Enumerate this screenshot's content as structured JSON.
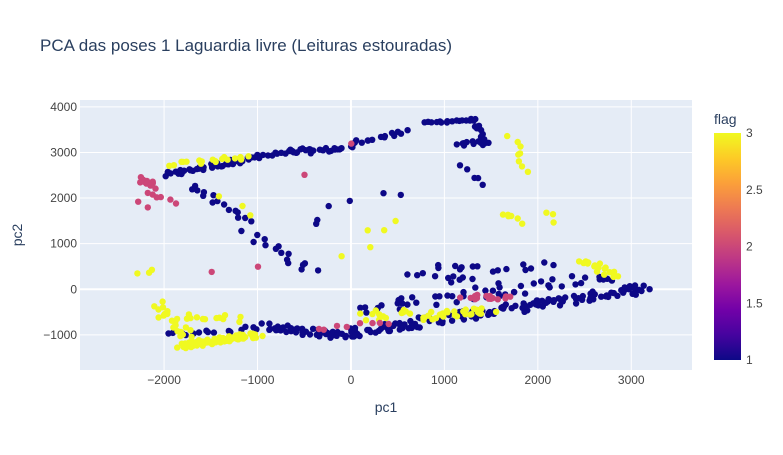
{
  "chart_data": {
    "type": "scatter",
    "title": "PCA das poses 1 Laguardia livre (Leituras estouradas)",
    "xlabel": "pc1",
    "ylabel": "pc2",
    "xlim": [
      -2900,
      3650
    ],
    "ylim": [
      -1770,
      4150
    ],
    "x_ticks": [
      -2000,
      -1000,
      0,
      1000,
      2000,
      3000
    ],
    "x_tick_labels": [
      "−2000",
      "−1000",
      "0",
      "1000",
      "2000",
      "3000"
    ],
    "y_ticks": [
      -1000,
      0,
      1000,
      2000,
      3000,
      4000
    ],
    "y_tick_labels": [
      "−1000",
      "0",
      "1000",
      "2000",
      "3000",
      "4000"
    ],
    "grid": true,
    "colorbar": {
      "title": "flag",
      "min": 1,
      "max": 3,
      "ticks": [
        1,
        1.5,
        2,
        2.5,
        3
      ],
      "tick_labels": [
        "1",
        "1.5",
        "2",
        "2.5",
        "3"
      ]
    },
    "colors": {
      "plot_bg": "#e5ecf6",
      "low": "#0d0887",
      "mid": "#cc4778",
      "high": "#f0f921",
      "text": "#444444",
      "title": "#2a3f5f"
    },
    "series": [
      {
        "flag": 1,
        "segments": [
          {
            "from": [
              -2000,
              2500
            ],
            "to": [
              -1000,
              2900
            ],
            "n": 40,
            "jitter": 55
          },
          {
            "from": [
              -1000,
              2900
            ],
            "to": [
              -500,
              3050
            ],
            "n": 15,
            "jitter": 50
          },
          {
            "from": [
              -600,
              3000
            ],
            "to": [
              0,
              3100
            ],
            "n": 20,
            "jitter": 50
          },
          {
            "from": [
              0,
              3200
            ],
            "to": [
              600,
              3450
            ],
            "n": 15,
            "jitter": 40
          },
          {
            "from": [
              800,
              3650
            ],
            "to": [
              1300,
              3720
            ],
            "n": 15,
            "jitter": 25
          },
          {
            "from": [
              1300,
              3750
            ],
            "to": [
              1450,
              3150
            ],
            "n": 15,
            "jitter": 40
          },
          {
            "from": [
              1150,
              3150
            ],
            "to": [
              1400,
              3250
            ],
            "n": 10,
            "jitter": 40
          },
          {
            "from": [
              -1700,
              2300
            ],
            "to": [
              -1100,
              1500
            ],
            "n": 15,
            "jitter": 60
          },
          {
            "from": [
              -1100,
              1200
            ],
            "to": [
              -400,
              400
            ],
            "n": 15,
            "jitter": 80
          },
          {
            "from": [
              -2000,
              -1000
            ],
            "to": [
              -1000,
              -850
            ],
            "n": 15,
            "jitter": 50
          },
          {
            "from": [
              -900,
              -800
            ],
            "to": [
              0,
              -1050
            ],
            "n": 45,
            "jitter": 80
          },
          {
            "from": [
              0,
              -950
            ],
            "to": [
              3200,
              50
            ],
            "n": 140,
            "jitter": 100
          },
          {
            "from": [
              100,
              -450
            ],
            "to": [
              2800,
              300
            ],
            "n": 50,
            "jitter": 120
          },
          {
            "from": [
              900,
              450
            ],
            "to": [
              2100,
              500
            ],
            "n": 15,
            "jitter": 100
          },
          {
            "from": [
              1200,
              2700
            ],
            "to": [
              1400,
              2300
            ],
            "n": 5,
            "jitter": 60
          },
          {
            "from": [
              -500,
              1500
            ],
            "to": [
              500,
              2100
            ],
            "n": 6,
            "jitter": 150
          },
          {
            "from": [
              700,
              400
            ],
            "to": [
              1500,
              100
            ],
            "n": 12,
            "jitter": 100
          }
        ]
      },
      {
        "flag": 3,
        "segments": [
          {
            "from": [
              -1850,
              -1250
            ],
            "to": [
              -1000,
              -1000
            ],
            "n": 90,
            "jitter": 60
          },
          {
            "from": [
              -2100,
              -350
            ],
            "to": [
              -1700,
              -1150
            ],
            "n": 25,
            "jitter": 90
          },
          {
            "from": [
              -1800,
              -600
            ],
            "to": [
              -1200,
              -650
            ],
            "n": 12,
            "jitter": 80
          },
          {
            "from": [
              -1900,
              2750
            ],
            "to": [
              -1100,
              2900
            ],
            "n": 18,
            "jitter": 50
          },
          {
            "from": [
              700,
              -600
            ],
            "to": [
              1500,
              -450
            ],
            "n": 30,
            "jitter": 80
          },
          {
            "from": [
              150,
              -600
            ],
            "to": [
              600,
              -500
            ],
            "n": 12,
            "jitter": 100
          },
          {
            "from": [
              2500,
              650
            ],
            "to": [
              2800,
              300
            ],
            "n": 18,
            "jitter": 60
          },
          {
            "from": [
              1700,
              3300
            ],
            "to": [
              1900,
              2600
            ],
            "n": 8,
            "jitter": 60
          },
          {
            "from": [
              1600,
              1700
            ],
            "to": [
              1850,
              1500
            ],
            "n": 6,
            "jitter": 80
          },
          {
            "from": [
              2100,
              1700
            ],
            "to": [
              2200,
              1500
            ],
            "n": 3,
            "jitter": 50
          },
          {
            "from": [
              -2300,
              350
            ],
            "to": [
              -2100,
              400
            ],
            "n": 3,
            "jitter": 40
          },
          {
            "from": [
              0,
              800
            ],
            "to": [
              400,
              1600
            ],
            "n": 5,
            "jitter": 120
          },
          {
            "from": [
              -1000,
              1600
            ],
            "to": [
              -1400,
              2100
            ],
            "n": 3,
            "jitter": 100
          }
        ]
      },
      {
        "flag": 2,
        "segments": [
          {
            "from": [
              -2300,
              2450
            ],
            "to": [
              -2100,
              2250
            ],
            "n": 14,
            "jitter": 60
          },
          {
            "from": [
              -2200,
              2100
            ],
            "to": [
              -1900,
              1900
            ],
            "n": 6,
            "jitter": 50
          },
          {
            "from": [
              -2300,
              1900
            ],
            "to": [
              -2200,
              1800
            ],
            "n": 2,
            "jitter": 40
          },
          {
            "from": [
              1200,
              -150
            ],
            "to": [
              1700,
              -200
            ],
            "n": 16,
            "jitter": 60
          },
          {
            "from": [
              -400,
              -850
            ],
            "to": [
              400,
              -750
            ],
            "n": 8,
            "jitter": 60
          },
          {
            "from": [
              -1000,
              500
            ],
            "to": [
              -1500,
              400
            ],
            "n": 2,
            "jitter": 40
          },
          {
            "from": [
              -500,
              2500
            ],
            "to": [
              0,
              3200
            ],
            "n": 2,
            "jitter": 30
          }
        ]
      }
    ]
  }
}
